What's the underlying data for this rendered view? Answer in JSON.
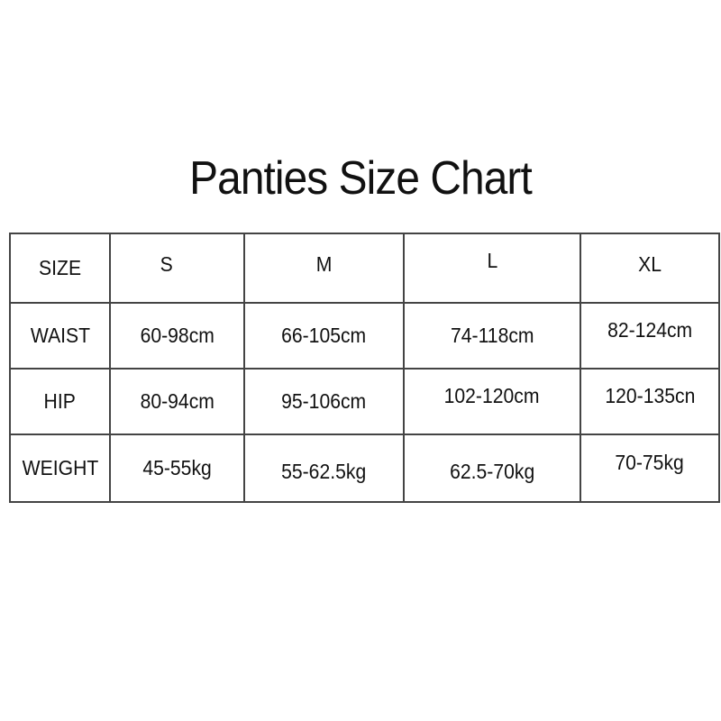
{
  "title": "Panties Size Chart",
  "table": {
    "header": [
      "SIZE",
      "S",
      "M",
      "L",
      "XL"
    ],
    "rows": [
      [
        "WAIST",
        "60-98cm",
        "66-105cm",
        "74-118cm",
        "82-124cm"
      ],
      [
        "HIP",
        "80-94cm",
        "95-106cm",
        "102-120cm",
        "120-135cn"
      ],
      [
        "WEIGHT",
        "45-55kg",
        "55-62.5kg",
        "62.5-70kg",
        "70-75kg"
      ]
    ]
  }
}
